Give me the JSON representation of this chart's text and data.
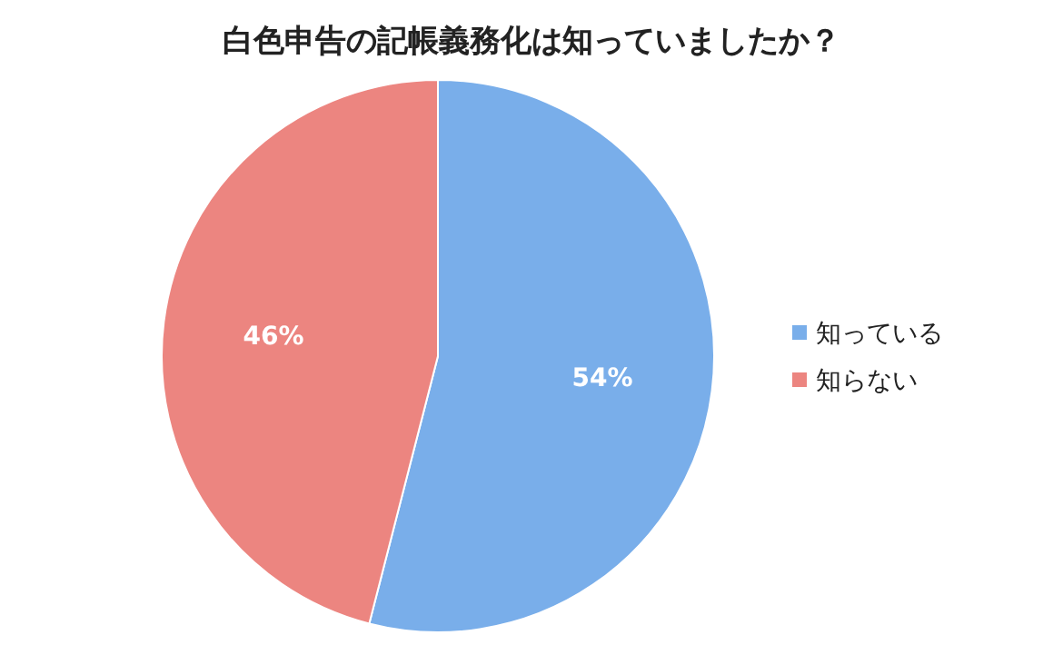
{
  "chart_data": {
    "type": "pie",
    "title": "白色申告の記帳義務化は知っていましたか？",
    "categories": [
      "知っている",
      "知らない"
    ],
    "values": [
      54,
      46
    ],
    "value_labels": [
      "54%",
      "46%"
    ],
    "colors": [
      "#79aeea",
      "#ec8580"
    ],
    "legend": "right"
  }
}
